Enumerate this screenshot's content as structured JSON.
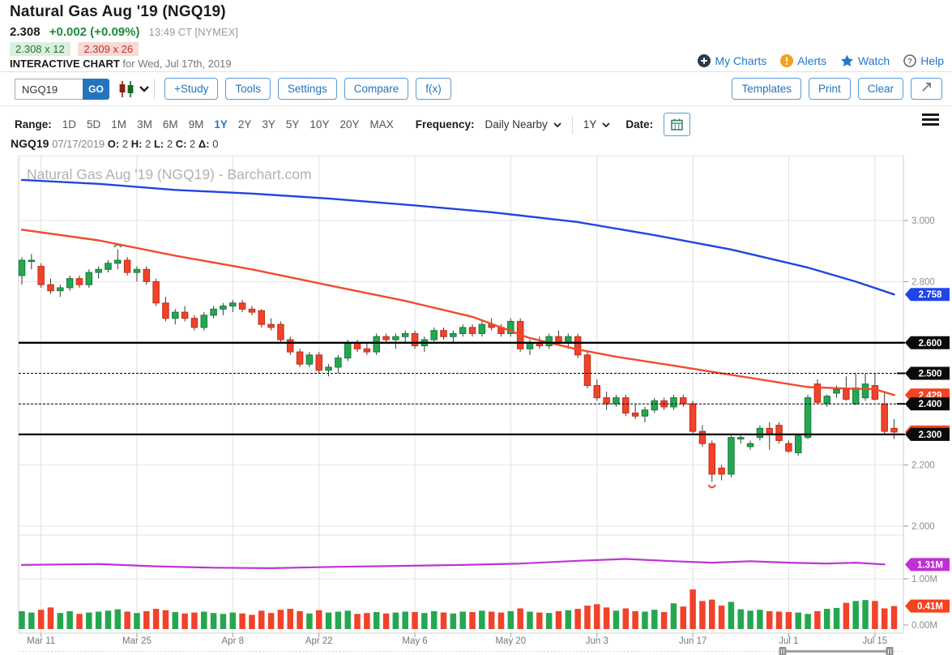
{
  "header": {
    "title": "Natural Gas Aug '19 (NGQ19)",
    "last": "2.308",
    "change": "+0.002 (+0.09%)",
    "time": "13:49 CT [NYMEX]",
    "bid": "2.308 x 12",
    "ask": "2.309 x 26",
    "chart_label": "INTERACTIVE CHART",
    "chart_date": "for Wed, Jul 17th, 2019",
    "links": [
      {
        "label": "My Charts",
        "icon": "plus-circle-icon"
      },
      {
        "label": "Alerts",
        "icon": "alert-icon"
      },
      {
        "label": "Watch",
        "icon": "star-icon"
      },
      {
        "label": "Help",
        "icon": "question-icon"
      }
    ]
  },
  "toolbar": {
    "symbol_value": "NGQ19",
    "go_label": "GO",
    "buttons": [
      "+Study",
      "Tools",
      "Settings",
      "Compare",
      "f(x)"
    ],
    "right_buttons": [
      "Templates",
      "Print",
      "Clear"
    ]
  },
  "range_bar": {
    "range_label": "Range:",
    "ranges": [
      "1D",
      "5D",
      "1M",
      "3M",
      "6M",
      "9M",
      "1Y",
      "2Y",
      "3Y",
      "5Y",
      "10Y",
      "20Y",
      "MAX"
    ],
    "active_range": "1Y",
    "frequency_label": "Frequency:",
    "frequency_value": "Daily Nearby",
    "period_value": "1Y",
    "date_label": "Date:"
  },
  "ohlc_bar": {
    "symbol": "NGQ19",
    "date": "07/17/2019",
    "o_label": "O:",
    "o": "2",
    "h_label": "H:",
    "h": "2",
    "l_label": "L:",
    "l": "2",
    "c_label": "C:",
    "c": "2",
    "delta_label": "Δ:",
    "delta": "0"
  },
  "chart_data": {
    "type": "candlestick+volume",
    "watermark": "Natural Gas Aug '19 (NGQ19) - Barchart.com",
    "colors": {
      "up": "#25a750",
      "up_stroke": "#157a3a",
      "down": "#f1422a",
      "down_stroke": "#c22f16",
      "ma_long": "#2444e0",
      "ma_short": "#f14b2e",
      "vol_avg": "#bf33d6",
      "badge_black": "#0a0a0a",
      "badge_blue": "#1e46e8",
      "badge_red": "#f4431f",
      "badge_magenta": "#bf2fd4"
    },
    "price_axis": {
      "top_value": 3.0,
      "ticks": [
        {
          "label": "3.000",
          "value": 3.0
        },
        {
          "label": "2.800",
          "value": 2.8
        },
        {
          "label": "2.600",
          "value": 2.6
        },
        {
          "label": "2.400",
          "value": 2.4
        },
        {
          "label": "2.200",
          "value": 2.2
        },
        {
          "label": "2.000",
          "value": 2.0
        }
      ]
    },
    "volume_axis": {
      "ticks": [
        {
          "label": "1.00M",
          "value": 1.0
        },
        {
          "label": "0.00M",
          "value": 0.0
        }
      ]
    },
    "x_axis": {
      "ticks": [
        {
          "label": "Mar 11",
          "index": 2
        },
        {
          "label": "Mar 25",
          "index": 12
        },
        {
          "label": "Apr 8",
          "index": 22
        },
        {
          "label": "Apr 22",
          "index": 31
        },
        {
          "label": "May 6",
          "index": 41
        },
        {
          "label": "May 20",
          "index": 51
        },
        {
          "label": "Jun 3",
          "index": 60
        },
        {
          "label": "Jun 17",
          "index": 70
        },
        {
          "label": "Jul 1",
          "index": 80
        },
        {
          "label": "Jul 15",
          "index": 89
        }
      ]
    },
    "price_lines": [
      {
        "value": 2.6,
        "style": "solid"
      },
      {
        "value": 2.5,
        "style": "dashed"
      },
      {
        "value": 2.4,
        "style": "dashed"
      },
      {
        "value": 2.3,
        "style": "solid"
      }
    ],
    "badges": [
      {
        "label": "2.758",
        "value": 2.758,
        "color": "#1e46e8",
        "panel": "price"
      },
      {
        "label": "2.308",
        "value": 2.308,
        "color": "#f4431f",
        "panel": "price"
      },
      {
        "label": "2.429",
        "value": 2.429,
        "color": "#f4431f",
        "panel": "price"
      },
      {
        "label": "2.600",
        "value": 2.6,
        "color": "#0a0a0a",
        "panel": "price"
      },
      {
        "label": "2.500",
        "value": 2.5,
        "color": "#0a0a0a",
        "panel": "price"
      },
      {
        "label": "2.400",
        "value": 2.4,
        "color": "#0a0a0a",
        "panel": "price"
      },
      {
        "label": "2.300",
        "value": 2.3,
        "color": "#0a0a0a",
        "panel": "price"
      },
      {
        "label": "1.31M",
        "value": 1.31,
        "color": "#bf2fd4",
        "panel": "volume"
      },
      {
        "label": "0.41M",
        "value": 0.41,
        "color": "#f4431f",
        "panel": "volume"
      }
    ],
    "markers": [
      {
        "type": "high",
        "index": 10,
        "value": 2.905,
        "color": "#25a750"
      },
      {
        "type": "low",
        "index": 72,
        "value": 2.145,
        "color": "#f4431f"
      }
    ],
    "moving_averages": [
      {
        "name": "long-ma",
        "color": "#2444e0",
        "last_label": "2.758",
        "points": [
          [
            0,
            3.133
          ],
          [
            8,
            3.12
          ],
          [
            16,
            3.1
          ],
          [
            24,
            3.088
          ],
          [
            32,
            3.072
          ],
          [
            40,
            3.052
          ],
          [
            49,
            3.027
          ],
          [
            58,
            2.995
          ],
          [
            66,
            2.952
          ],
          [
            74,
            2.905
          ],
          [
            82,
            2.846
          ],
          [
            87,
            2.8
          ],
          [
            91,
            2.758
          ]
        ]
      },
      {
        "name": "short-ma",
        "color": "#f14b2e",
        "last_label": "2.429",
        "points": [
          [
            0,
            2.97
          ],
          [
            8,
            2.935
          ],
          [
            16,
            2.885
          ],
          [
            24,
            2.84
          ],
          [
            32,
            2.788
          ],
          [
            40,
            2.737
          ],
          [
            47,
            2.685
          ],
          [
            53,
            2.615
          ],
          [
            58,
            2.578
          ],
          [
            62,
            2.554
          ],
          [
            68,
            2.525
          ],
          [
            73,
            2.5
          ],
          [
            78,
            2.475
          ],
          [
            82,
            2.455
          ],
          [
            86,
            2.45
          ],
          [
            89,
            2.448
          ],
          [
            91,
            2.429
          ]
        ]
      }
    ],
    "volume_average": {
      "color": "#bf33d6",
      "last_label": "1.31M",
      "points": [
        [
          0,
          1.3
        ],
        [
          8,
          1.32
        ],
        [
          14,
          1.27
        ],
        [
          20,
          1.24
        ],
        [
          26,
          1.23
        ],
        [
          33,
          1.26
        ],
        [
          40,
          1.28
        ],
        [
          46,
          1.3
        ],
        [
          52,
          1.33
        ],
        [
          58,
          1.39
        ],
        [
          63,
          1.43
        ],
        [
          68,
          1.38
        ],
        [
          72,
          1.35
        ],
        [
          76,
          1.38
        ],
        [
          80,
          1.35
        ],
        [
          84,
          1.33
        ],
        [
          87,
          1.35
        ],
        [
          90,
          1.31
        ]
      ]
    },
    "candles": [
      [
        "03/07",
        2.82,
        2.88,
        2.79,
        2.87,
        0.3
      ],
      [
        "03/08",
        2.87,
        2.89,
        2.84,
        2.87,
        0.27
      ],
      [
        "03/11",
        2.85,
        2.86,
        2.78,
        2.79,
        0.33
      ],
      [
        "03/12",
        2.79,
        2.81,
        2.76,
        2.77,
        0.38
      ],
      [
        "03/13",
        2.77,
        2.79,
        2.75,
        2.78,
        0.26
      ],
      [
        "03/14",
        2.78,
        2.82,
        2.77,
        2.81,
        0.3
      ],
      [
        "03/15",
        2.81,
        2.82,
        2.78,
        2.79,
        0.24
      ],
      [
        "03/18",
        2.79,
        2.84,
        2.78,
        2.83,
        0.27
      ],
      [
        "03/19",
        2.83,
        2.85,
        2.81,
        2.84,
        0.29
      ],
      [
        "03/20",
        2.84,
        2.87,
        2.83,
        2.86,
        0.31
      ],
      [
        "03/21",
        2.86,
        2.905,
        2.84,
        2.87,
        0.34
      ],
      [
        "03/22",
        2.87,
        2.88,
        2.82,
        2.83,
        0.29
      ],
      [
        "03/25",
        2.83,
        2.85,
        2.8,
        2.84,
        0.26
      ],
      [
        "03/26",
        2.84,
        2.85,
        2.79,
        2.8,
        0.3
      ],
      [
        "03/27",
        2.8,
        2.81,
        2.72,
        2.73,
        0.35
      ],
      [
        "03/28",
        2.73,
        2.75,
        2.67,
        2.68,
        0.32
      ],
      [
        "03/29",
        2.68,
        2.71,
        2.66,
        2.7,
        0.28
      ],
      [
        "04/01",
        2.7,
        2.72,
        2.67,
        2.68,
        0.25
      ],
      [
        "04/02",
        2.68,
        2.69,
        2.64,
        2.65,
        0.27
      ],
      [
        "04/03",
        2.65,
        2.7,
        2.64,
        2.69,
        0.29
      ],
      [
        "04/04",
        2.69,
        2.72,
        2.68,
        2.71,
        0.26
      ],
      [
        "04/05",
        2.71,
        2.73,
        2.69,
        2.72,
        0.24
      ],
      [
        "04/08",
        2.72,
        2.74,
        2.7,
        2.73,
        0.27
      ],
      [
        "04/09",
        2.73,
        2.74,
        2.7,
        2.71,
        0.25
      ],
      [
        "04/10",
        2.71,
        2.72,
        2.69,
        2.7,
        0.22
      ],
      [
        "04/11",
        2.705,
        2.71,
        2.65,
        2.66,
        0.31
      ],
      [
        "04/12",
        2.66,
        2.68,
        2.64,
        2.65,
        0.26
      ],
      [
        "04/15",
        2.66,
        2.67,
        2.6,
        2.61,
        0.33
      ],
      [
        "04/16",
        2.61,
        2.62,
        2.56,
        2.57,
        0.35
      ],
      [
        "04/17",
        2.57,
        2.58,
        2.52,
        2.53,
        0.3
      ],
      [
        "04/18",
        2.53,
        2.57,
        2.52,
        2.56,
        0.25
      ],
      [
        "04/22",
        2.56,
        2.57,
        2.5,
        2.51,
        0.32
      ],
      [
        "04/23",
        2.51,
        2.53,
        2.49,
        2.52,
        0.27
      ],
      [
        "04/24",
        2.52,
        2.56,
        2.5,
        2.55,
        0.29
      ],
      [
        "04/25",
        2.55,
        2.61,
        2.54,
        2.6,
        0.31
      ],
      [
        "04/26",
        2.6,
        2.61,
        2.57,
        2.58,
        0.24
      ],
      [
        "04/29",
        2.58,
        2.6,
        2.56,
        2.57,
        0.26
      ],
      [
        "04/30",
        2.57,
        2.63,
        2.56,
        2.62,
        0.28
      ],
      [
        "05/01",
        2.62,
        2.63,
        2.6,
        2.61,
        0.25
      ],
      [
        "05/02",
        2.61,
        2.63,
        2.58,
        2.62,
        0.27
      ],
      [
        "05/03",
        2.62,
        2.64,
        2.6,
        2.63,
        0.29
      ],
      [
        "05/06",
        2.63,
        2.64,
        2.58,
        2.59,
        0.28
      ],
      [
        "05/07",
        2.59,
        2.62,
        2.57,
        2.61,
        0.26
      ],
      [
        "05/08",
        2.61,
        2.65,
        2.6,
        2.64,
        0.3
      ],
      [
        "05/09",
        2.64,
        2.65,
        2.61,
        2.62,
        0.27
      ],
      [
        "05/10",
        2.62,
        2.64,
        2.6,
        2.63,
        0.25
      ],
      [
        "05/13",
        2.63,
        2.66,
        2.62,
        2.65,
        0.29
      ],
      [
        "05/14",
        2.65,
        2.66,
        2.62,
        2.63,
        0.28
      ],
      [
        "05/15",
        2.63,
        2.67,
        2.62,
        2.66,
        0.31
      ],
      [
        "05/16",
        2.66,
        2.68,
        2.64,
        2.65,
        0.29
      ],
      [
        "05/17",
        2.65,
        2.66,
        2.62,
        2.63,
        0.27
      ],
      [
        "05/20",
        2.63,
        2.68,
        2.62,
        2.67,
        0.3
      ],
      [
        "05/21",
        2.67,
        2.68,
        2.57,
        2.58,
        0.36
      ],
      [
        "05/22",
        2.58,
        2.61,
        2.56,
        2.6,
        0.29
      ],
      [
        "05/23",
        2.6,
        2.62,
        2.58,
        2.59,
        0.27
      ],
      [
        "05/24",
        2.59,
        2.63,
        2.58,
        2.62,
        0.26
      ],
      [
        "05/28",
        2.62,
        2.64,
        2.59,
        2.6,
        0.3
      ],
      [
        "05/29",
        2.6,
        2.63,
        2.58,
        2.62,
        0.32
      ],
      [
        "05/30",
        2.62,
        2.63,
        2.55,
        2.56,
        0.35
      ],
      [
        "05/31",
        2.56,
        2.57,
        2.45,
        2.46,
        0.42
      ],
      [
        "06/03",
        2.46,
        2.48,
        2.41,
        2.42,
        0.45
      ],
      [
        "06/04",
        2.42,
        2.44,
        2.38,
        2.4,
        0.38
      ],
      [
        "06/05",
        2.4,
        2.43,
        2.39,
        2.42,
        0.31
      ],
      [
        "06/06",
        2.42,
        2.43,
        2.36,
        2.37,
        0.36
      ],
      [
        "06/07",
        2.37,
        2.4,
        2.35,
        2.36,
        0.3
      ],
      [
        "06/10",
        2.36,
        2.39,
        2.34,
        2.38,
        0.29
      ],
      [
        "06/11",
        2.38,
        2.42,
        2.37,
        2.41,
        0.33
      ],
      [
        "06/12",
        2.41,
        2.42,
        2.38,
        2.39,
        0.28
      ],
      [
        "06/13",
        2.39,
        2.43,
        2.38,
        2.42,
        0.47
      ],
      [
        "06/14",
        2.42,
        2.43,
        2.39,
        2.4,
        0.4
      ],
      [
        "06/17",
        2.4,
        2.41,
        2.3,
        2.31,
        0.77
      ],
      [
        "06/18",
        2.31,
        2.33,
        2.26,
        2.27,
        0.52
      ],
      [
        "06/19",
        2.27,
        2.28,
        2.145,
        2.17,
        0.55
      ],
      [
        "06/20",
        2.19,
        2.2,
        2.15,
        2.17,
        0.42
      ],
      [
        "06/21",
        2.17,
        2.3,
        2.16,
        2.29,
        0.5
      ],
      [
        "06/24",
        2.285,
        2.3,
        2.27,
        2.29,
        0.34
      ],
      [
        "06/25",
        2.26,
        2.28,
        2.25,
        2.27,
        0.31
      ],
      [
        "06/26",
        2.29,
        2.33,
        2.28,
        2.32,
        0.33
      ],
      [
        "06/27",
        2.32,
        2.34,
        2.25,
        2.3,
        0.3
      ],
      [
        "06/28",
        2.33,
        2.34,
        2.27,
        2.28,
        0.29
      ],
      [
        "07/01",
        2.27,
        2.28,
        2.24,
        2.245,
        0.28
      ],
      [
        "07/02",
        2.24,
        2.3,
        2.23,
        2.295,
        0.27
      ],
      [
        "07/03",
        2.29,
        2.43,
        2.285,
        2.42,
        0.24
      ],
      [
        "07/05",
        2.465,
        2.48,
        2.4,
        2.405,
        0.3
      ],
      [
        "07/08",
        2.4,
        2.43,
        2.39,
        2.425,
        0.35
      ],
      [
        "07/09",
        2.435,
        2.46,
        2.42,
        2.447,
        0.37
      ],
      [
        "07/10",
        2.447,
        2.49,
        2.41,
        2.415,
        0.48
      ],
      [
        "07/11",
        2.4,
        2.5,
        2.395,
        2.452,
        0.52
      ],
      [
        "07/12",
        2.42,
        2.5,
        2.41,
        2.465,
        0.54
      ],
      [
        "07/15",
        2.46,
        2.5,
        2.41,
        2.415,
        0.52
      ],
      [
        "07/16",
        2.4,
        2.44,
        2.3,
        2.31,
        0.36
      ],
      [
        "07/17",
        2.32,
        2.35,
        2.285,
        2.308,
        0.41
      ]
    ]
  }
}
